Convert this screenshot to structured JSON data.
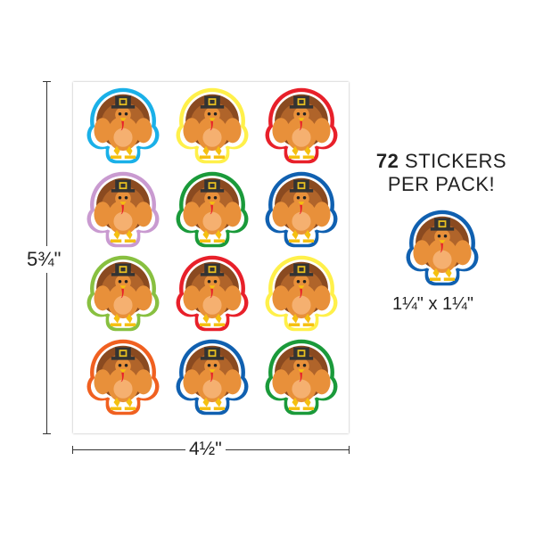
{
  "dimensions": {
    "height": "5¾\"",
    "width": "4½\""
  },
  "promo": {
    "count": "72",
    "line1": "STICKERS",
    "line2": "PER PACK!"
  },
  "sticker_size": "1¼\" x 1¼\"",
  "sheet": {
    "border_colors": [
      "#1ab0e8",
      "#fff04a",
      "#e8202a",
      "#c99ad0",
      "#1a9a3a",
      "#1060b0",
      "#88c040",
      "#e8202a",
      "#fff04a",
      "#f06020",
      "#1060b0",
      "#1a9a3a"
    ]
  },
  "sample": {
    "border_color": "#1060b0"
  }
}
